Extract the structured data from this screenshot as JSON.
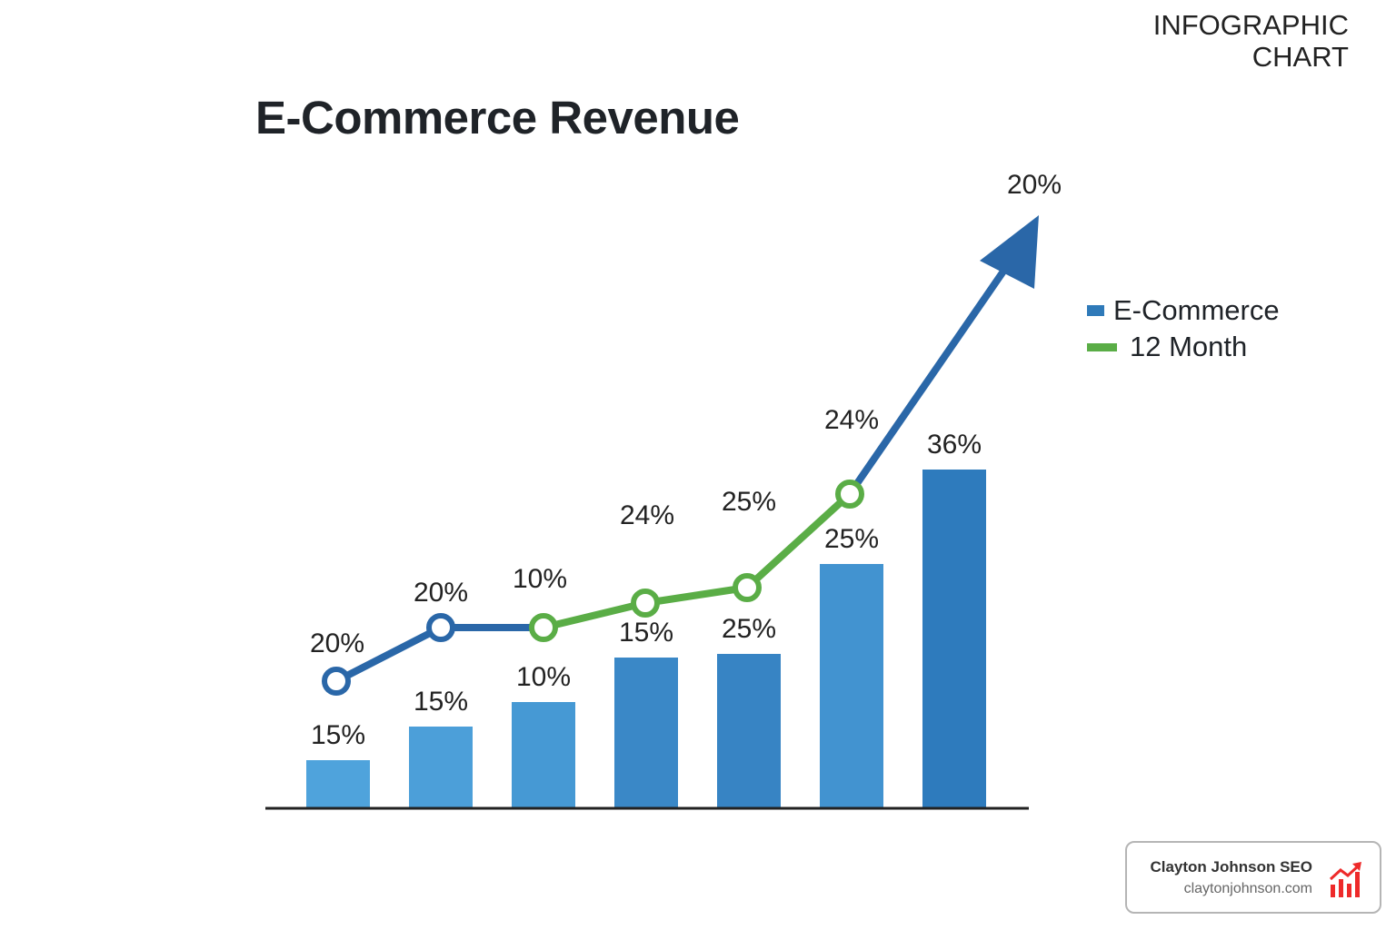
{
  "corner_label": [
    "INFOGRAPHIC",
    "CHART"
  ],
  "chart_data": {
    "type": "bar",
    "title": "E-Commerce Revenue",
    "legend": [
      {
        "name": "E-Commerce",
        "color": "#2f7ab9"
      },
      {
        "name": "12 Month",
        "color": "#5aad46"
      }
    ],
    "legend_placement": "right",
    "grid": false,
    "series": [
      {
        "name": "E-Commerce",
        "kind": "bar",
        "labels": [
          "15%",
          "15%",
          "10%",
          "15%",
          "25%",
          "25%",
          "36%"
        ]
      },
      {
        "name": "12 Month",
        "kind": "line",
        "labels": [
          "20%",
          "20%",
          "10%",
          "24%",
          "25%",
          "24%"
        ],
        "arrow_label": "20%"
      }
    ]
  },
  "colors": {
    "bar_light": "#4fa3dc",
    "bar_dark": "#2c74b6",
    "line_blue": "#2a67a8",
    "line_green": "#5aad46",
    "axis": "#222222"
  },
  "badge": {
    "name": "Clayton Johnson SEO",
    "url": "claytonjohnson.com",
    "icon": "rising-bar-chart-icon",
    "icon_color": "#ee2a2a"
  }
}
